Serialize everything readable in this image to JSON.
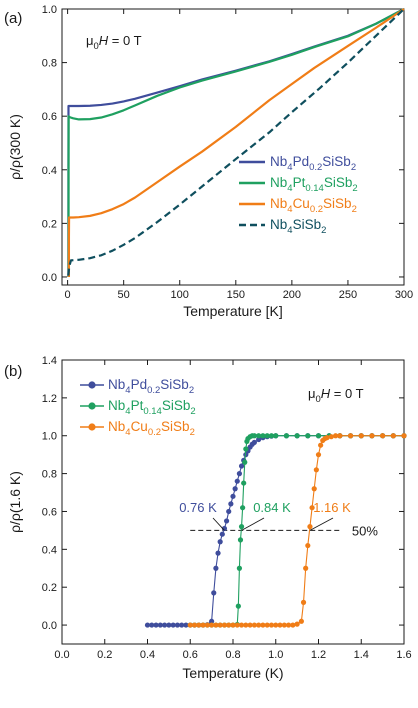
{
  "chart_data": [
    {
      "panel": "(a)",
      "type": "line",
      "annotation": "μ0H = 0 T",
      "xlabel": "Temperature [K]",
      "ylabel": "ρ/ρ(300 K)",
      "xlim": [
        -5,
        300
      ],
      "ylim": [
        -0.03,
        1.0
      ],
      "xticks": [
        0,
        50,
        100,
        150,
        200,
        250,
        300
      ],
      "yticks": [
        0.0,
        0.2,
        0.4,
        0.6,
        0.8,
        1.0
      ],
      "xtick_labels": [
        "0",
        "50",
        "100",
        "150",
        "200",
        "250",
        "300"
      ],
      "ytick_labels": [
        "0.0",
        "0.2",
        "0.4",
        "0.6",
        "0.8",
        "1.0"
      ],
      "legend_position": "right",
      "grid": false,
      "series": [
        {
          "name": "Nb4Pd0.2SiSb2",
          "color": "#3f4d9c",
          "dash": false,
          "x": [
            0.7,
            0.72,
            0.8,
            2,
            5,
            10,
            20,
            30,
            40,
            50,
            60,
            80,
            100,
            120,
            150,
            180,
            200,
            220,
            250,
            275,
            300
          ],
          "y": [
            0.0,
            0.4,
            0.638,
            0.638,
            0.638,
            0.638,
            0.639,
            0.642,
            0.647,
            0.655,
            0.665,
            0.688,
            0.712,
            0.737,
            0.77,
            0.805,
            0.832,
            0.86,
            0.9,
            0.945,
            1.0
          ]
        },
        {
          "name": "Nb4Pt0.14SiSb2",
          "color": "#1fa060",
          "dash": false,
          "x": [
            0.84,
            0.86,
            0.9,
            2,
            5,
            10,
            20,
            30,
            40,
            50,
            60,
            80,
            100,
            120,
            150,
            180,
            200,
            220,
            250,
            275,
            300
          ],
          "y": [
            0.0,
            0.4,
            0.6,
            0.596,
            0.592,
            0.588,
            0.589,
            0.595,
            0.607,
            0.622,
            0.64,
            0.676,
            0.707,
            0.733,
            0.767,
            0.803,
            0.829,
            0.858,
            0.898,
            0.945,
            1.0
          ]
        },
        {
          "name": "Nb4Cu0.2SiSb2",
          "color": "#f07d17",
          "dash": false,
          "x": [
            1.16,
            1.18,
            1.3,
            3,
            5,
            10,
            20,
            30,
            40,
            50,
            60,
            80,
            100,
            120,
            150,
            180,
            200,
            220,
            250,
            275,
            300
          ],
          "y": [
            0.0,
            0.15,
            0.222,
            0.222,
            0.222,
            0.223,
            0.228,
            0.238,
            0.253,
            0.272,
            0.296,
            0.354,
            0.412,
            0.468,
            0.56,
            0.66,
            0.72,
            0.78,
            0.862,
            0.93,
            1.0
          ]
        },
        {
          "name": "Nb4SiSb2",
          "color": "#0f4f5e",
          "dash": true,
          "x": [
            0.6,
            1.5,
            3,
            10,
            20,
            30,
            40,
            50,
            60,
            80,
            100,
            120,
            150,
            180,
            200,
            225,
            250,
            275,
            300
          ],
          "y": [
            0.005,
            0.04,
            0.062,
            0.064,
            0.07,
            0.081,
            0.098,
            0.12,
            0.145,
            0.205,
            0.27,
            0.338,
            0.44,
            0.54,
            0.615,
            0.705,
            0.8,
            0.9,
            1.0
          ]
        }
      ]
    },
    {
      "panel": "(b)",
      "type": "scatter",
      "annotation": "μ0H = 0 T",
      "xlabel": "Temperature (K)",
      "ylabel": "ρ/ρ(1.6 K)",
      "xlim": [
        0.0,
        1.6
      ],
      "ylim": [
        -0.1,
        1.4
      ],
      "xticks": [
        0.0,
        0.2,
        0.4,
        0.6,
        0.8,
        1.0,
        1.2,
        1.4,
        1.6
      ],
      "yticks": [
        0.0,
        0.2,
        0.4,
        0.6,
        0.8,
        1.0,
        1.2,
        1.4
      ],
      "xtick_labels": [
        "0.0",
        "0.2",
        "0.4",
        "0.6",
        "0.8",
        "1.0",
        "1.2",
        "1.4",
        "1.6"
      ],
      "ytick_labels": [
        "0.0",
        "0.2",
        "0.4",
        "0.6",
        "0.8",
        "1.0",
        "1.2",
        "1.4"
      ],
      "legend_position": "top-left",
      "grid": false,
      "midpoint_line": {
        "y": 0.5,
        "x_start": 0.6,
        "x_end": 1.3,
        "label": "50%"
      },
      "transitions": [
        {
          "label": "0.76 K",
          "series": "Nb4Pd0.2SiSb2",
          "tc": 0.76,
          "color": "#3f4d9c"
        },
        {
          "label": "0.84 K",
          "series": "Nb4Pt0.14SiSb2",
          "tc": 0.84,
          "color": "#1fa060"
        },
        {
          "label": "1.16 K",
          "series": "Nb4Cu0.2SiSb2",
          "tc": 1.16,
          "color": "#f07d17"
        }
      ],
      "series": [
        {
          "name": "Nb4Pd0.2SiSb2",
          "color": "#3f4d9c",
          "x": [
            0.4,
            0.42,
            0.44,
            0.46,
            0.48,
            0.5,
            0.52,
            0.54,
            0.56,
            0.58,
            0.6,
            0.62,
            0.64,
            0.66,
            0.68,
            0.7,
            0.71,
            0.72,
            0.73,
            0.74,
            0.75,
            0.76,
            0.77,
            0.78,
            0.79,
            0.8,
            0.81,
            0.82,
            0.83,
            0.84,
            0.85,
            0.86,
            0.87,
            0.88,
            0.89,
            0.9,
            0.92,
            0.94,
            0.96,
            0.98,
            1.0,
            1.05,
            1.1,
            1.15,
            1.2,
            1.25,
            1.3,
            1.35,
            1.4,
            1.45,
            1.5,
            1.55,
            1.6
          ],
          "y": [
            0,
            0,
            0,
            0,
            0,
            0,
            0,
            0,
            0,
            0,
            0,
            0,
            0,
            0,
            0.002,
            0.02,
            0.17,
            0.3,
            0.38,
            0.44,
            0.48,
            0.51,
            0.55,
            0.6,
            0.64,
            0.68,
            0.72,
            0.76,
            0.8,
            0.84,
            0.87,
            0.9,
            0.92,
            0.94,
            0.955,
            0.965,
            0.98,
            0.99,
            0.995,
            0.998,
            1.0,
            1.0,
            1.0,
            1.0,
            1.0,
            1.0,
            1.0,
            1.0,
            1.0,
            1.0,
            1.0,
            1.0,
            1.0
          ]
        },
        {
          "name": "Nb4Pt0.14SiSb2",
          "color": "#1fa060",
          "x": [
            0.6,
            0.62,
            0.64,
            0.66,
            0.68,
            0.7,
            0.72,
            0.74,
            0.76,
            0.78,
            0.8,
            0.82,
            0.825,
            0.83,
            0.835,
            0.84,
            0.845,
            0.85,
            0.855,
            0.86,
            0.865,
            0.87,
            0.88,
            0.89,
            0.9,
            0.92,
            0.94,
            0.96,
            0.98,
            1.0,
            1.05,
            1.1,
            1.15,
            1.2,
            1.25,
            1.3,
            1.35,
            1.4,
            1.45,
            1.5,
            1.55,
            1.6
          ],
          "y": [
            0,
            0,
            0,
            0,
            0,
            0,
            0,
            0,
            0,
            0,
            0,
            0.003,
            0.1,
            0.3,
            0.45,
            0.52,
            0.62,
            0.75,
            0.86,
            0.93,
            0.97,
            0.985,
            0.995,
            1.0,
            1.0,
            1.0,
            1.0,
            1.0,
            1.0,
            1.0,
            1.0,
            1.0,
            1.0,
            1.0,
            1.0,
            1.0,
            1.0,
            1.0,
            1.0,
            1.0,
            1.0,
            1.0
          ]
        },
        {
          "name": "Nb4Cu0.2SiSb2",
          "color": "#f07d17",
          "x": [
            0.6,
            0.62,
            0.64,
            0.66,
            0.68,
            0.7,
            0.72,
            0.74,
            0.76,
            0.78,
            0.8,
            0.82,
            0.84,
            0.86,
            0.88,
            0.9,
            0.92,
            0.94,
            0.96,
            0.98,
            1.0,
            1.02,
            1.04,
            1.06,
            1.08,
            1.1,
            1.12,
            1.13,
            1.14,
            1.15,
            1.16,
            1.17,
            1.18,
            1.19,
            1.2,
            1.21,
            1.22,
            1.23,
            1.24,
            1.26,
            1.28,
            1.3,
            1.35,
            1.4,
            1.45,
            1.5,
            1.55,
            1.6
          ],
          "y": [
            0,
            0,
            0,
            0,
            0,
            0,
            0,
            0,
            0,
            0,
            0,
            0,
            0,
            0,
            0,
            0,
            0,
            0,
            0,
            0,
            0,
            0,
            0,
            0,
            0,
            0.005,
            0.02,
            0.12,
            0.3,
            0.42,
            0.52,
            0.62,
            0.72,
            0.82,
            0.9,
            0.95,
            0.975,
            0.985,
            0.99,
            0.995,
            1.0,
            1.0,
            1.0,
            1.0,
            1.0,
            1.0,
            1.0,
            1.0
          ]
        }
      ]
    }
  ]
}
